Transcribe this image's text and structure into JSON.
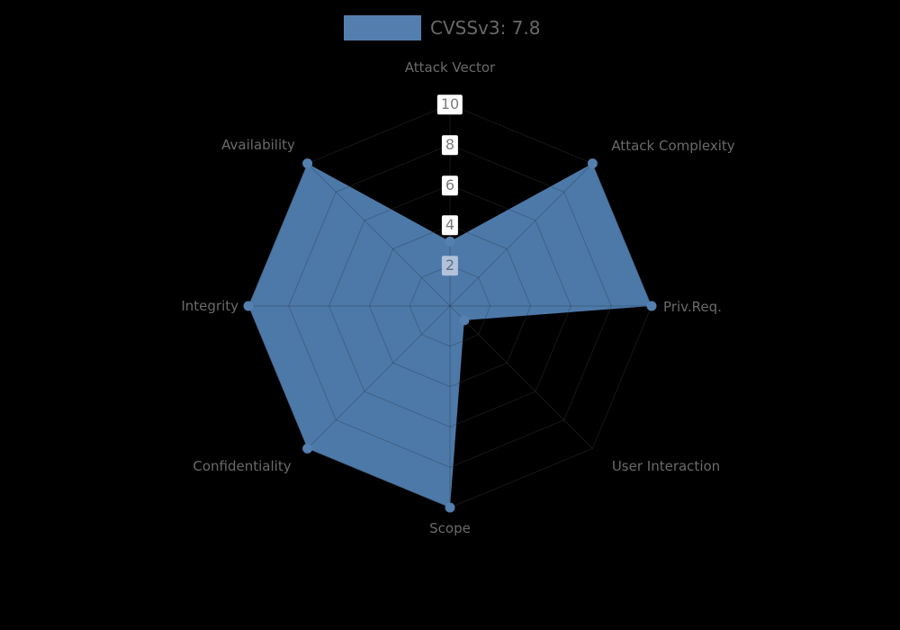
{
  "page": {
    "background": "#000000"
  },
  "legend": {
    "label": "CVSSv3: 7.8",
    "swatch_color": "#537eae"
  },
  "chart_data": {
    "type": "radar",
    "title": "",
    "categories": [
      "Attack Vector",
      "Attack Complexity",
      "Priv.Req.",
      "User Interaction",
      "Scope",
      "Confidentiality",
      "Integrity",
      "Availability"
    ],
    "series": [
      {
        "name": "CVSSv3: 7.8",
        "color": "#4d79a8",
        "marker_color": "#5480af",
        "values": [
          3.2,
          10,
          10,
          1,
          10,
          10,
          10,
          10
        ]
      }
    ],
    "radial_ticks": [
      "2",
      "4",
      "6",
      "8",
      "10"
    ],
    "range": [
      0,
      10
    ],
    "grid": true,
    "grid_shape": "octagon-web",
    "legend_position": "top-center",
    "colors": {
      "axis_label": "#6a6a6a",
      "tick_text": "#7b7b7b",
      "tick_box_bg": "#ffffff",
      "tick2_box_bg": "#b1c2d9",
      "tick2_text": "#5e7186",
      "grid_outer": "rgba(215,220,228,0.10)",
      "grid_inner": "rgba(0,0,0,0.16)"
    }
  }
}
